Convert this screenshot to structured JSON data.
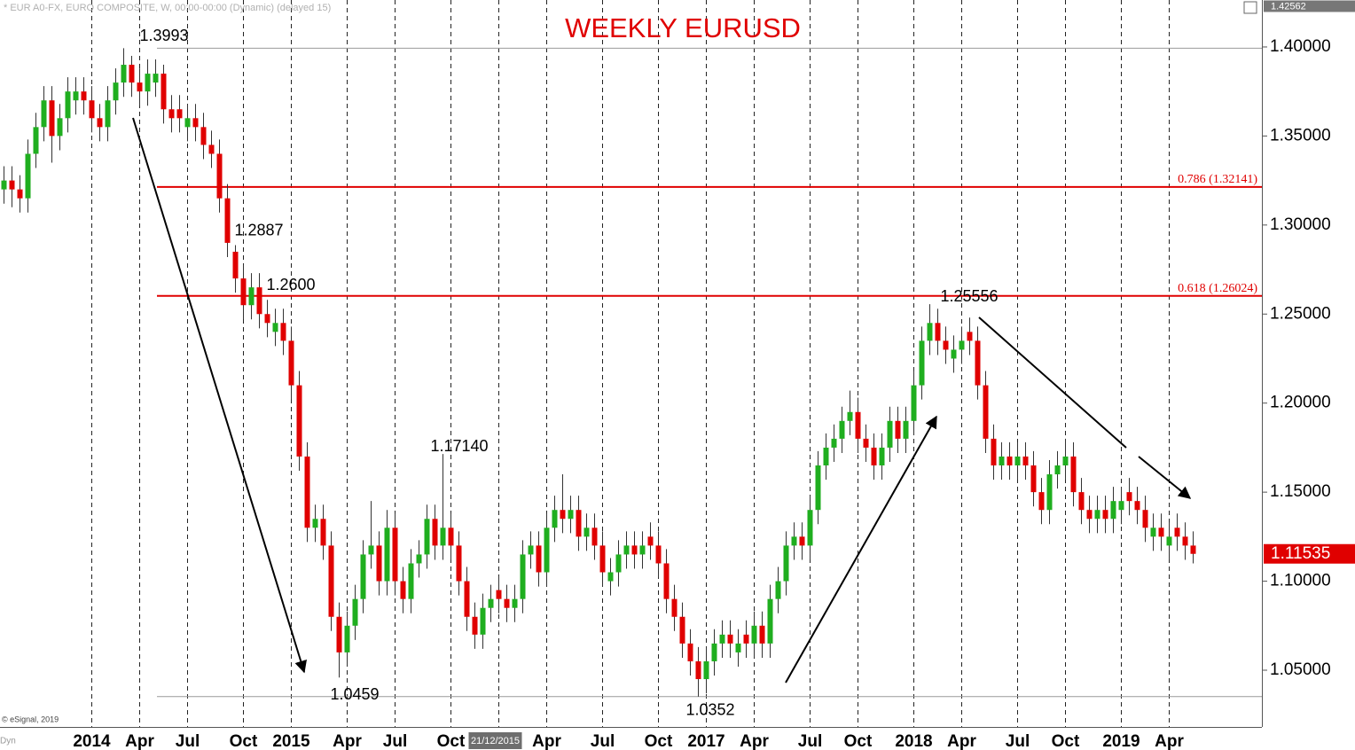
{
  "chart_data": {
    "type": "candlestick",
    "title": "WEEKLY EURUSD",
    "subtitle": "* EUR A0-FX, EURO COMPOSITE, W, 00:00-00:00 (Dynamic) (delayed 15)",
    "footnote": "© eSignal, 2019",
    "corner_label": "Dyn",
    "up_color": "#1fae1f",
    "down_color": "#e00000",
    "categories": [
      null,
      null,
      null,
      null,
      null,
      null,
      null,
      null,
      null,
      null,
      null,
      "2014",
      null,
      null,
      null,
      null,
      null,
      "Apr",
      null,
      null,
      null,
      null,
      null,
      "Jul",
      null,
      null,
      null,
      null,
      null,
      null,
      "Oct",
      null,
      null,
      null,
      null,
      null,
      "2015",
      null,
      null,
      null,
      null,
      null,
      null,
      "Apr",
      null,
      null,
      null,
      null,
      null,
      "Jul",
      null,
      null,
      null,
      null,
      null,
      null,
      "Oct",
      null,
      null,
      null,
      null,
      null,
      "21/12/2015",
      null,
      null,
      null,
      null,
      null,
      "Apr",
      null,
      null,
      null,
      null,
      null,
      null,
      "Jul",
      null,
      null,
      null,
      null,
      null,
      null,
      "Oct",
      null,
      null,
      null,
      null,
      null,
      "2017",
      null,
      null,
      null,
      null,
      null,
      "Apr",
      null,
      null,
      null,
      null,
      null,
      null,
      "Jul",
      null,
      null,
      null,
      null,
      null,
      "Oct",
      null,
      null,
      null,
      null,
      null,
      null,
      "2018",
      null,
      null,
      null,
      null,
      null,
      "Apr",
      null,
      null,
      null,
      null,
      null,
      null,
      "Jul",
      null,
      null,
      null,
      null,
      null,
      "Oct",
      null,
      null,
      null,
      null,
      null,
      null,
      "2019",
      null,
      null,
      null,
      null,
      null,
      "Apr",
      null,
      null,
      null
    ],
    "open": [
      1.32,
      1.325,
      1.32,
      1.315,
      1.34,
      1.355,
      1.37,
      1.35,
      1.36,
      1.37,
      1.375,
      1.37,
      1.36,
      1.355,
      1.37,
      1.38,
      1.39,
      1.38,
      1.375,
      1.38,
      1.385,
      1.365,
      1.365,
      1.355,
      1.36,
      1.355,
      1.345,
      1.34,
      1.315,
      1.285,
      1.27,
      1.255,
      1.265,
      1.25,
      1.24,
      1.245,
      1.235,
      1.21,
      1.17,
      1.13,
      1.135,
      1.12,
      1.08,
      1.06,
      1.075,
      1.09,
      1.115,
      1.12,
      1.1,
      1.13,
      1.1,
      1.09,
      1.11,
      1.115,
      1.135,
      1.12,
      1.13,
      1.12,
      1.1,
      1.08,
      1.07,
      1.085,
      1.095,
      1.09,
      1.085,
      1.09,
      1.115,
      1.12,
      1.105,
      1.13,
      1.14,
      1.135,
      1.14,
      1.125,
      1.13,
      1.12,
      1.1,
      1.105,
      1.115,
      1.12,
      1.115,
      1.125,
      1.12,
      1.11,
      1.09,
      1.08,
      1.065,
      1.055,
      1.045,
      1.055,
      1.065,
      1.07,
      1.06,
      1.07,
      1.065,
      1.075,
      1.065,
      1.09,
      1.1,
      1.12,
      1.125,
      1.12,
      1.14,
      1.165,
      1.175,
      1.18,
      1.19,
      1.195,
      1.18,
      1.175,
      1.165,
      1.175,
      1.19,
      1.18,
      1.19,
      1.21,
      1.235,
      1.245,
      1.235,
      1.225,
      1.23,
      1.24,
      1.235,
      1.21,
      1.18,
      1.165,
      1.17,
      1.165,
      1.17,
      1.165,
      1.15,
      1.14,
      1.16,
      1.165,
      1.17,
      1.15,
      1.14,
      1.135,
      1.14,
      1.135,
      1.14,
      1.15,
      1.145,
      1.14,
      1.125,
      1.13,
      1.12,
      1.13,
      1.125,
      1.12
    ],
    "high": [
      1.333,
      1.333,
      1.328,
      1.348,
      1.363,
      1.378,
      1.378,
      1.368,
      1.383,
      1.383,
      1.383,
      1.378,
      1.368,
      1.378,
      1.388,
      1.3993,
      1.395,
      1.388,
      1.393,
      1.393,
      1.39,
      1.373,
      1.373,
      1.368,
      1.368,
      1.363,
      1.353,
      1.348,
      1.323,
      1.2887,
      1.278,
      1.273,
      1.273,
      1.258,
      1.253,
      1.253,
      1.243,
      1.218,
      1.178,
      1.143,
      1.143,
      1.128,
      1.088,
      1.083,
      1.098,
      1.123,
      1.145,
      1.128,
      1.14,
      1.138,
      1.108,
      1.118,
      1.123,
      1.143,
      1.143,
      1.1714,
      1.138,
      1.128,
      1.108,
      1.088,
      1.093,
      1.098,
      1.103,
      1.098,
      1.098,
      1.123,
      1.128,
      1.128,
      1.138,
      1.148,
      1.16,
      1.148,
      1.148,
      1.138,
      1.138,
      1.128,
      1.113,
      1.123,
      1.128,
      1.128,
      1.128,
      1.133,
      1.128,
      1.118,
      1.098,
      1.088,
      1.073,
      1.063,
      1.063,
      1.073,
      1.078,
      1.078,
      1.073,
      1.078,
      1.083,
      1.083,
      1.098,
      1.108,
      1.128,
      1.133,
      1.133,
      1.148,
      1.173,
      1.183,
      1.188,
      1.198,
      1.207,
      1.203,
      1.188,
      1.183,
      1.183,
      1.198,
      1.198,
      1.198,
      1.218,
      1.243,
      1.25556,
      1.253,
      1.243,
      1.238,
      1.243,
      1.248,
      1.243,
      1.218,
      1.188,
      1.178,
      1.178,
      1.178,
      1.178,
      1.173,
      1.158,
      1.168,
      1.173,
      1.18,
      1.178,
      1.158,
      1.148,
      1.148,
      1.148,
      1.153,
      1.153,
      1.158,
      1.153,
      1.148,
      1.138,
      1.138,
      1.133,
      1.138,
      1.133,
      1.128
    ],
    "low": [
      1.312,
      1.31,
      1.307,
      1.307,
      1.332,
      1.347,
      1.335,
      1.342,
      1.352,
      1.362,
      1.362,
      1.352,
      1.347,
      1.347,
      1.362,
      1.372,
      1.372,
      1.367,
      1.367,
      1.372,
      1.357,
      1.352,
      1.352,
      1.347,
      1.347,
      1.337,
      1.332,
      1.307,
      1.282,
      1.262,
      1.247,
      1.247,
      1.242,
      1.237,
      1.232,
      1.227,
      1.202,
      1.162,
      1.122,
      1.122,
      1.112,
      1.072,
      1.0459,
      1.052,
      1.067,
      1.082,
      1.107,
      1.092,
      1.092,
      1.092,
      1.082,
      1.082,
      1.102,
      1.107,
      1.112,
      1.112,
      1.112,
      1.092,
      1.072,
      1.062,
      1.062,
      1.077,
      1.082,
      1.077,
      1.077,
      1.082,
      1.107,
      1.097,
      1.097,
      1.122,
      1.127,
      1.127,
      1.117,
      1.117,
      1.112,
      1.097,
      1.092,
      1.097,
      1.107,
      1.107,
      1.107,
      1.112,
      1.102,
      1.082,
      1.072,
      1.057,
      1.047,
      1.0352,
      1.037,
      1.047,
      1.057,
      1.057,
      1.052,
      1.057,
      1.057,
      1.057,
      1.057,
      1.082,
      1.092,
      1.112,
      1.112,
      1.112,
      1.132,
      1.157,
      1.167,
      1.172,
      1.182,
      1.172,
      1.167,
      1.157,
      1.157,
      1.167,
      1.172,
      1.172,
      1.182,
      1.202,
      1.227,
      1.227,
      1.222,
      1.217,
      1.222,
      1.227,
      1.202,
      1.172,
      1.157,
      1.157,
      1.157,
      1.157,
      1.157,
      1.142,
      1.132,
      1.132,
      1.152,
      1.157,
      1.142,
      1.132,
      1.127,
      1.127,
      1.127,
      1.127,
      1.132,
      1.137,
      1.132,
      1.122,
      1.117,
      1.117,
      1.112,
      1.117,
      1.112,
      1.11
    ],
    "close": [
      1.325,
      1.32,
      1.315,
      1.34,
      1.355,
      1.37,
      1.35,
      1.36,
      1.375,
      1.375,
      1.37,
      1.36,
      1.355,
      1.37,
      1.38,
      1.39,
      1.38,
      1.375,
      1.385,
      1.385,
      1.365,
      1.36,
      1.36,
      1.36,
      1.355,
      1.345,
      1.34,
      1.315,
      1.29,
      1.27,
      1.255,
      1.265,
      1.25,
      1.245,
      1.245,
      1.235,
      1.21,
      1.17,
      1.13,
      1.135,
      1.12,
      1.08,
      1.06,
      1.075,
      1.09,
      1.115,
      1.12,
      1.1,
      1.13,
      1.1,
      1.09,
      1.11,
      1.115,
      1.135,
      1.12,
      1.13,
      1.12,
      1.1,
      1.08,
      1.07,
      1.085,
      1.09,
      1.09,
      1.085,
      1.09,
      1.115,
      1.12,
      1.105,
      1.13,
      1.14,
      1.135,
      1.14,
      1.125,
      1.13,
      1.12,
      1.105,
      1.105,
      1.115,
      1.12,
      1.115,
      1.12,
      1.12,
      1.11,
      1.09,
      1.08,
      1.065,
      1.055,
      1.045,
      1.055,
      1.065,
      1.07,
      1.065,
      1.065,
      1.065,
      1.075,
      1.065,
      1.09,
      1.1,
      1.12,
      1.125,
      1.12,
      1.14,
      1.165,
      1.175,
      1.18,
      1.19,
      1.195,
      1.18,
      1.175,
      1.165,
      1.175,
      1.19,
      1.18,
      1.19,
      1.21,
      1.235,
      1.245,
      1.235,
      1.23,
      1.23,
      1.235,
      1.235,
      1.21,
      1.18,
      1.165,
      1.17,
      1.165,
      1.17,
      1.165,
      1.15,
      1.14,
      1.16,
      1.165,
      1.17,
      1.15,
      1.14,
      1.135,
      1.14,
      1.135,
      1.145,
      1.145,
      1.145,
      1.14,
      1.13,
      1.13,
      1.125,
      1.125,
      1.125,
      1.12,
      1.11535
    ],
    "ylim": [
      1.01814,
      1.42562
    ],
    "yticks": [
      {
        "value": 1.4,
        "label": "1.40000"
      },
      {
        "value": 1.35,
        "label": "1.35000"
      },
      {
        "value": 1.3,
        "label": "1.30000"
      },
      {
        "value": 1.25,
        "label": "1.25000"
      },
      {
        "value": 1.2,
        "label": "1.20000"
      },
      {
        "value": 1.15,
        "label": "1.15000"
      },
      {
        "value": 1.1,
        "label": "1.10000"
      },
      {
        "value": 1.05,
        "label": "1.05000"
      }
    ],
    "hlines": [
      {
        "value": 1.32141,
        "label": "0.786 (1.32141)",
        "color": "#e00000"
      },
      {
        "value": 1.26024,
        "label": "0.618 (1.26024)",
        "color": "#e00000"
      },
      {
        "value": 1.3993,
        "color": "#9a9a9a"
      },
      {
        "value": 1.0352,
        "color": "#9a9a9a"
      }
    ],
    "annotations": [
      {
        "text": "1.3993",
        "value": 1.3993
      },
      {
        "text": "1.2887",
        "value": 1.2887
      },
      {
        "text": "1.2600",
        "value": 1.26
      },
      {
        "text": "1.17140",
        "value": 1.1714
      },
      {
        "text": "1.0459",
        "value": 1.0459
      },
      {
        "text": "1.0352",
        "value": 1.0352
      },
      {
        "text": "1.25556",
        "value": 1.25556
      }
    ]
  }
}
